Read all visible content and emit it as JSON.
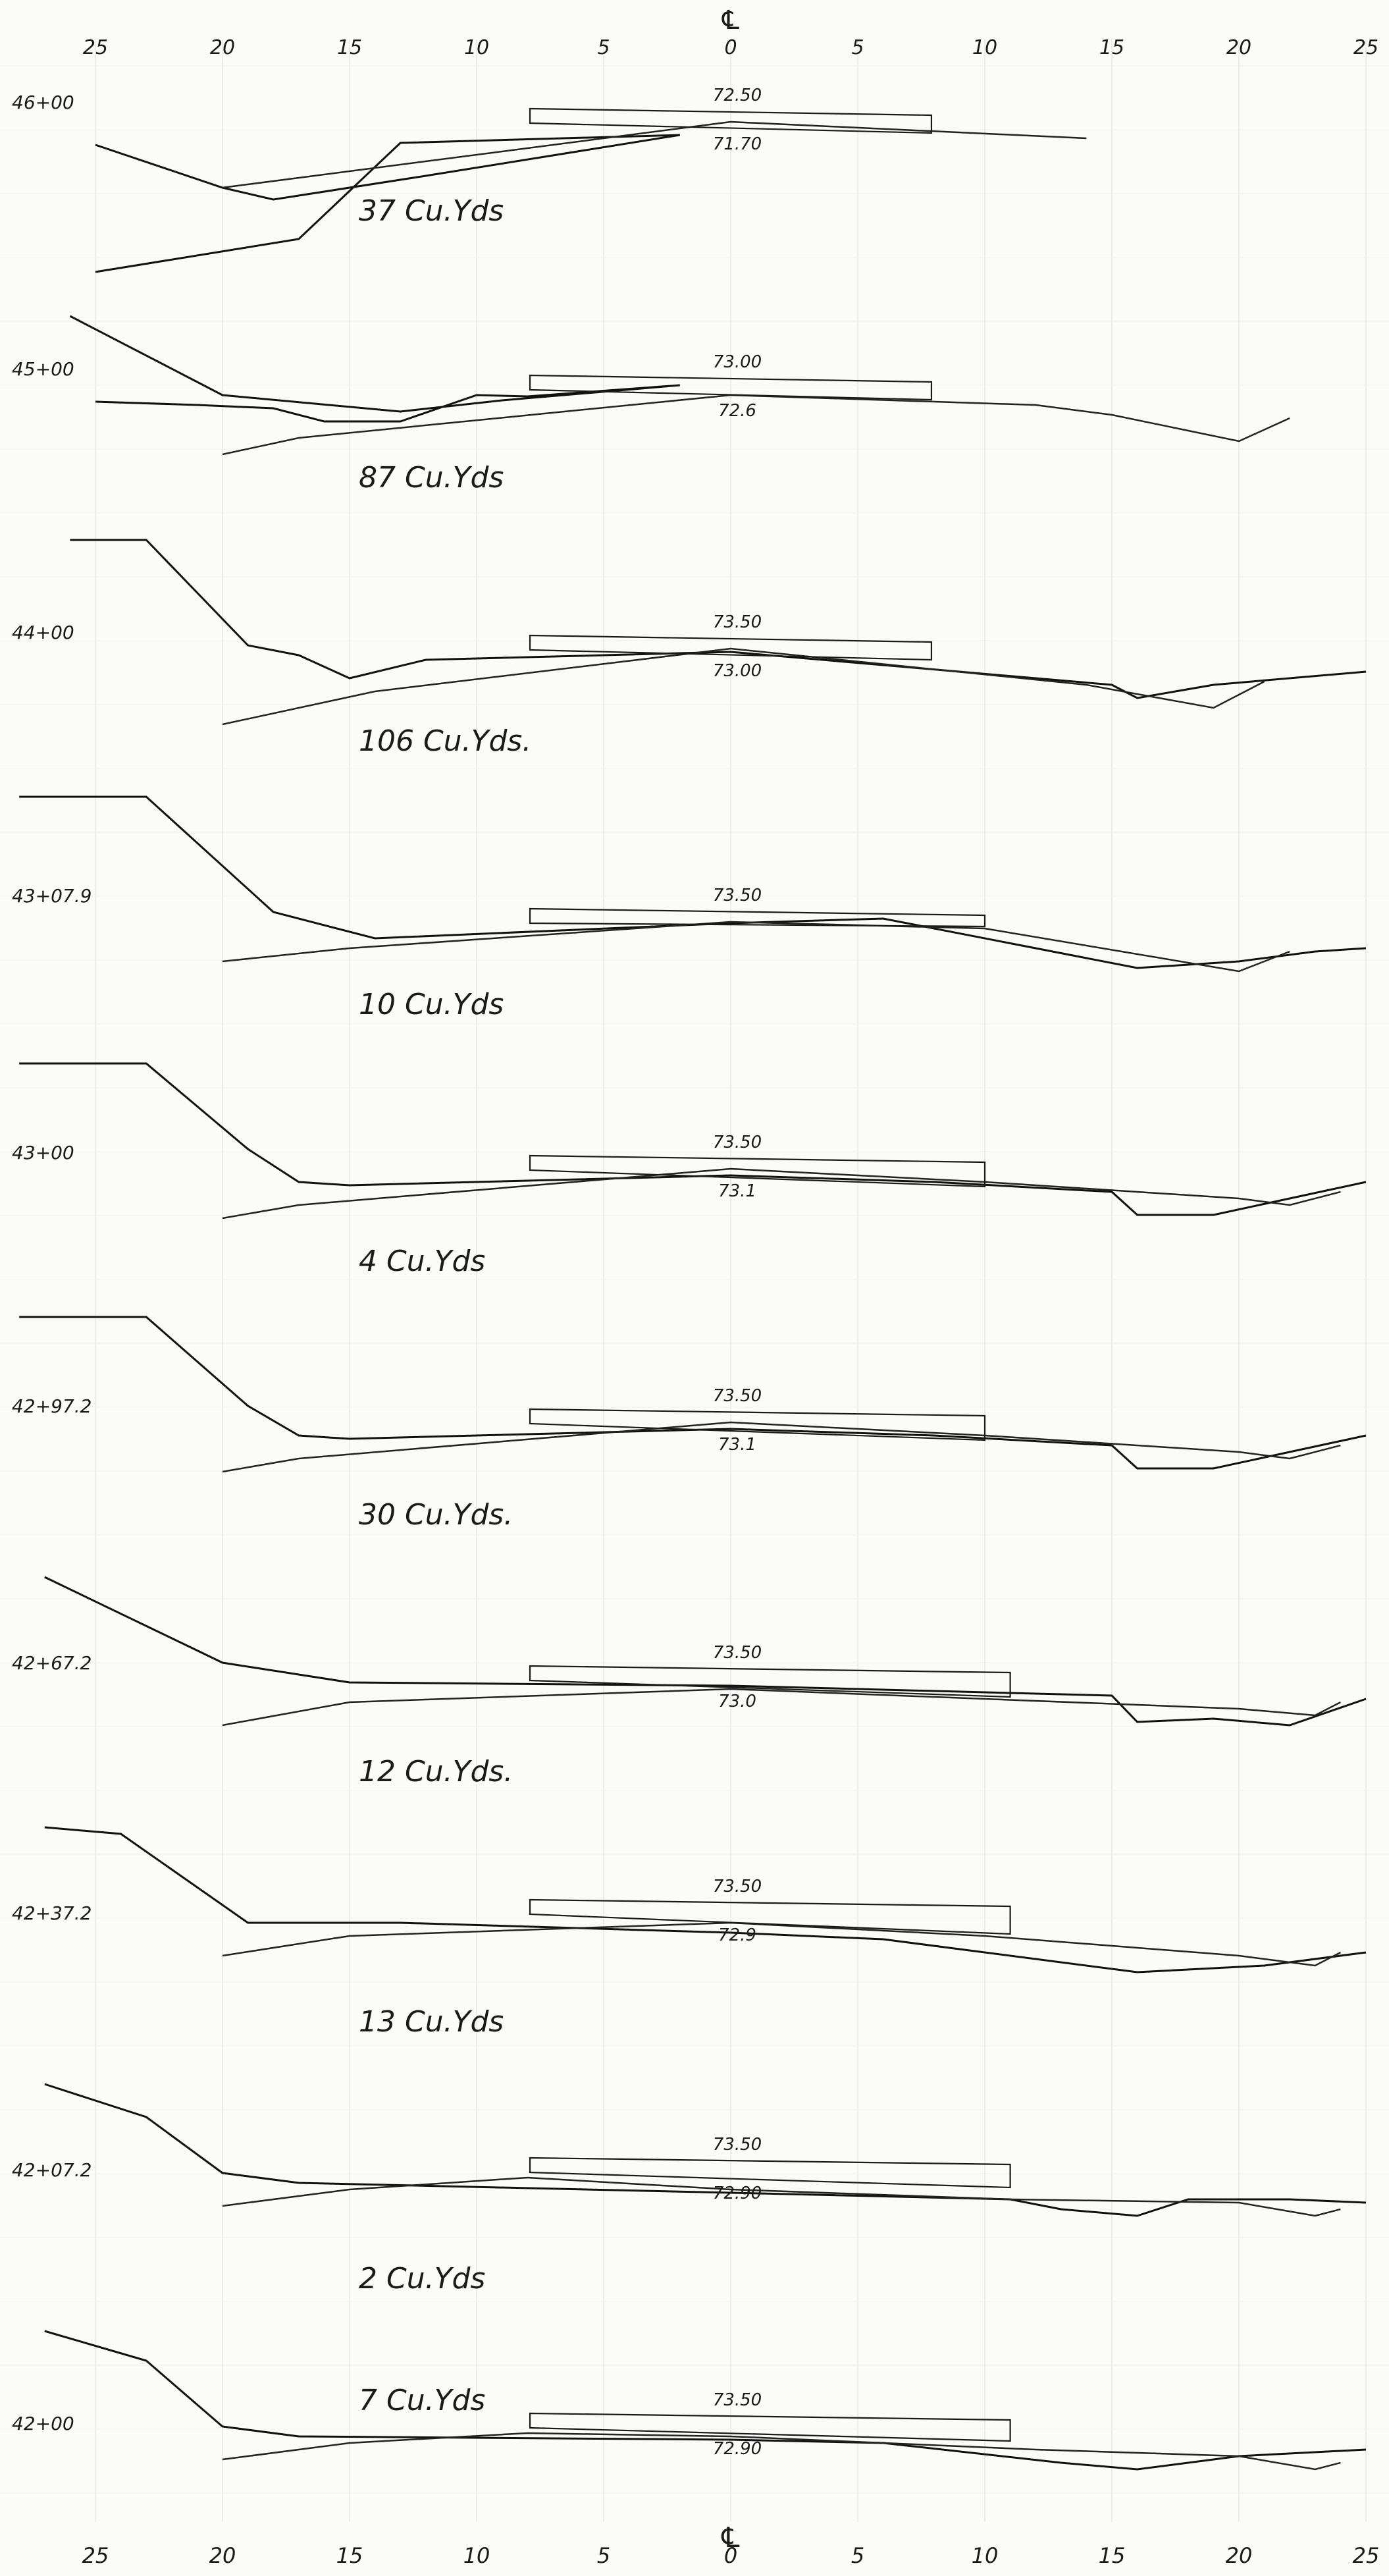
{
  "centerline_symbol": "℄",
  "top_axis_labels": [
    "25",
    "20",
    "15",
    "10",
    "5",
    "0",
    "5",
    "10",
    "15",
    "20",
    "25"
  ],
  "bottom_axis_labels": [
    "25",
    "20",
    "15",
    "10",
    "5",
    "0",
    "5",
    "10",
    "15",
    "20",
    "25"
  ],
  "sections": [
    {
      "station": "46+00",
      "top_elev": "72.50",
      "bottom_elev": "71.70",
      "volume": "37 Cu.Yds"
    },
    {
      "station": "45+00",
      "top_elev": "73.00",
      "bottom_elev": "72.6",
      "volume": "87 Cu.Yds"
    },
    {
      "station": "44+00",
      "top_elev": "73.50",
      "bottom_elev": "73.00",
      "volume": "106 Cu.Yds."
    },
    {
      "station": "43+07.9",
      "top_elev": "73.50",
      "bottom_elev": "",
      "volume": "10 Cu.Yds"
    },
    {
      "station": "43+00",
      "top_elev": "73.50",
      "bottom_elev": "73.1",
      "volume": "4 Cu.Yds"
    },
    {
      "station": "42+97.2",
      "top_elev": "73.50",
      "bottom_elev": "73.1",
      "volume": "30 Cu.Yds."
    },
    {
      "station": "42+67.2",
      "top_elev": "73.50",
      "bottom_elev": "73.0",
      "volume": "12 Cu.Yds."
    },
    {
      "station": "42+37.2",
      "top_elev": "73.50",
      "bottom_elev": "72.9",
      "volume": "13 Cu.Yds"
    },
    {
      "station": "42+07.2",
      "top_elev": "73.50",
      "bottom_elev": "72.90",
      "volume": "2 Cu.Yds"
    },
    {
      "station": "42+00",
      "top_elev": "73.50",
      "bottom_elev": "72.90",
      "volume": "7 Cu.Yds"
    }
  ]
}
